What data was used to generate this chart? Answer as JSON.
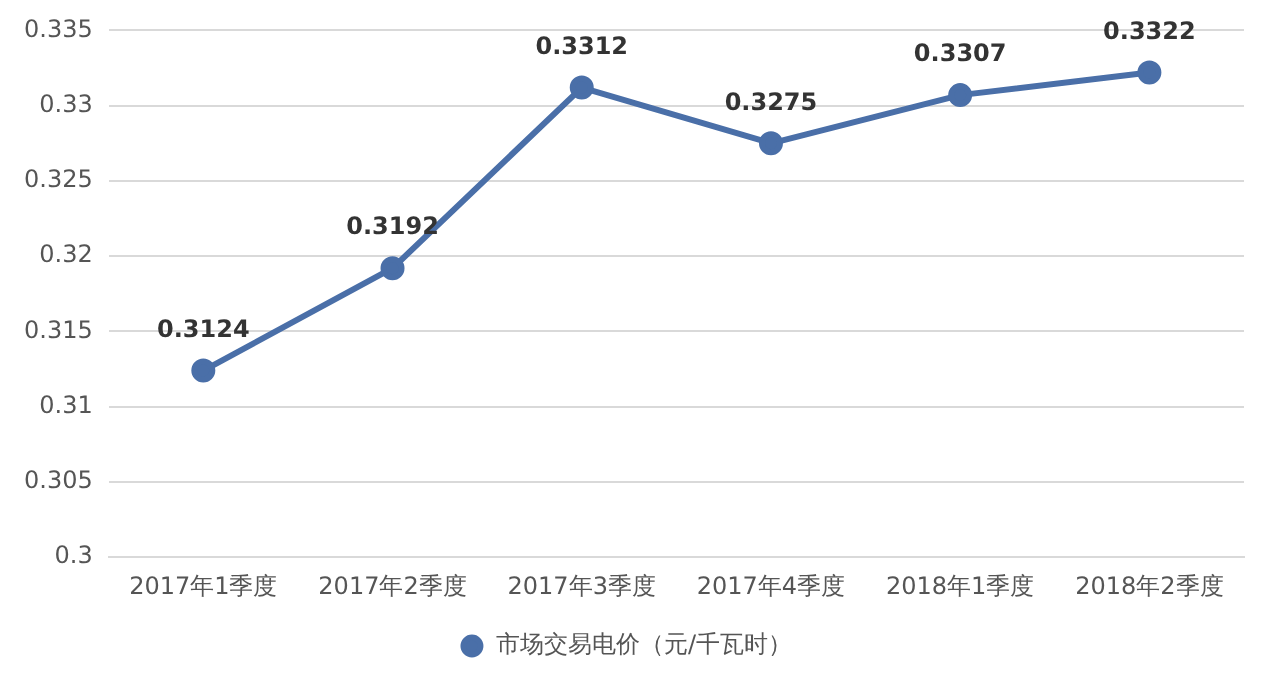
{
  "chart_data": {
    "type": "line",
    "categories": [
      "2017年1季度",
      "2017年2季度",
      "2017年3季度",
      "2017年4季度",
      "2018年1季度",
      "2018年2季度"
    ],
    "series": [
      {
        "name": "市场交易电价（元/千瓦时）",
        "color": "#4a6fa8",
        "values": [
          0.3124,
          0.3192,
          0.3312,
          0.3275,
          0.3307,
          0.3322
        ]
      }
    ],
    "ylim": [
      0.3,
      0.335
    ],
    "yticks": [
      0.3,
      0.305,
      0.31,
      0.315,
      0.32,
      0.325,
      0.33,
      0.335
    ],
    "grid": "y",
    "legend": "bottom",
    "marker": "circle",
    "data_labels": true
  }
}
